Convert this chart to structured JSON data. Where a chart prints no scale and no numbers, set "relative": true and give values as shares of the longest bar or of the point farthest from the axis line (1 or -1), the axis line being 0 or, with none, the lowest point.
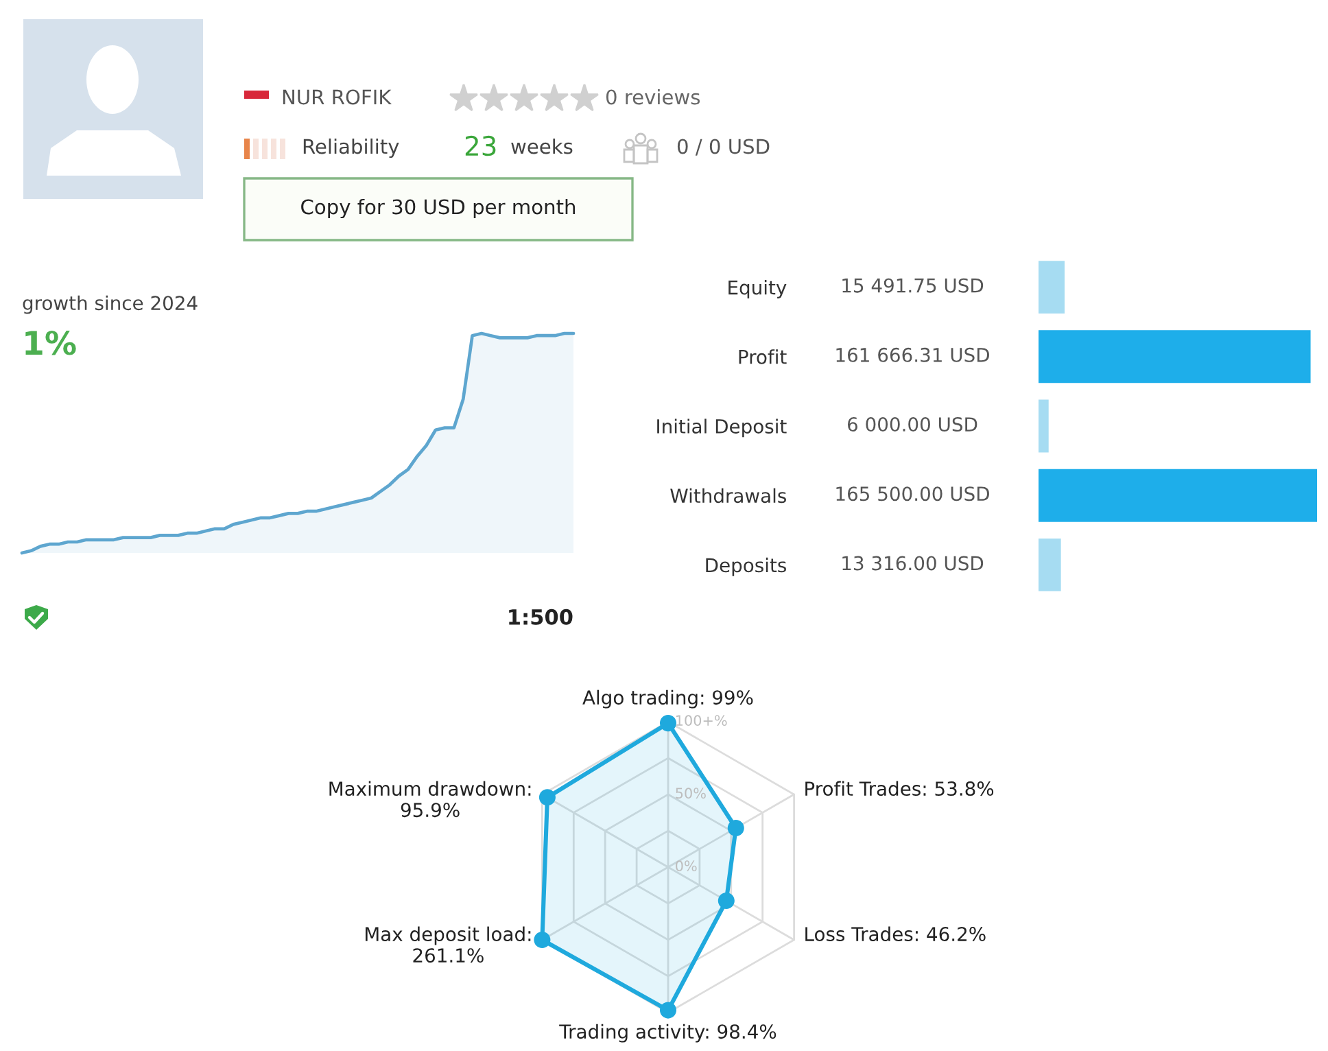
{
  "chart_data": [
    {
      "type": "other",
      "annotations": [
        "NUR ROFIK",
        "0 reviews",
        "Reliability",
        "23",
        "weeks",
        "0 / 0 USD",
        "Copy for 30 USD per month"
      ]
    },
    {
      "type": "area",
      "title": "growth since 2024",
      "subtitle": "1%",
      "relative": true,
      "categories": [
        null,
        null,
        null,
        null,
        null,
        null,
        null,
        null,
        null,
        null,
        null,
        null,
        null,
        null,
        null,
        null,
        null,
        null,
        null,
        null,
        null,
        null,
        null,
        null,
        null,
        null,
        null,
        null,
        null,
        null,
        null,
        null,
        null,
        null,
        null,
        null,
        null,
        null,
        null,
        null,
        null,
        null,
        null,
        null,
        null,
        null,
        null,
        null,
        null,
        null,
        null,
        null,
        null,
        null,
        null,
        null,
        null,
        null,
        null,
        null,
        null
      ],
      "series": [
        {
          "color": "#5ea6cf",
          "values": [
            0,
            0.01,
            0.03,
            0.04,
            0.04,
            0.05,
            0.05,
            0.06,
            0.06,
            0.06,
            0.06,
            0.07,
            0.07,
            0.07,
            0.07,
            0.08,
            0.08,
            0.08,
            0.09,
            0.09,
            0.1,
            0.11,
            0.11,
            0.13,
            0.14,
            0.15,
            0.16,
            0.16,
            0.17,
            0.18,
            0.18,
            0.19,
            0.19,
            0.2,
            0.21,
            0.22,
            0.23,
            0.24,
            0.25,
            0.28,
            0.31,
            0.35,
            0.38,
            0.44,
            0.49,
            0.56,
            0.57,
            0.57,
            0.7,
            0.99,
            1,
            0.99,
            0.98,
            0.98,
            0.98,
            0.98,
            0.99,
            0.99,
            0.99,
            1,
            1
          ]
        }
      ],
      "annotations": [
        "1:500"
      ]
    },
    {
      "type": "bar",
      "orientation": "horizontal",
      "categories": [
        "Equity",
        "Profit",
        "Initial Deposit",
        "Withdrawals",
        "Deposits"
      ],
      "values": [
        15491.75,
        161666.31,
        6000,
        165500,
        13316
      ],
      "value_labels": [
        "15 491.75 USD",
        "161 666.31 USD",
        "6 000.00 USD",
        "165 500.00 USD",
        "13 316.00 USD"
      ],
      "colors": [
        "#a6dcf2",
        "#1eaeea",
        "#a6dcf2",
        "#1eaeea",
        "#a6dcf2"
      ]
    },
    {
      "type": "radar",
      "categories": [
        "Algo trading: 99%",
        "Profit Trades: 53.8%",
        "Loss Trades: 46.2%",
        "Trading activity: 98.4%",
        "Max deposit load:\n261.1%",
        "Maximum drawdown:\n95.9%"
      ],
      "series": [
        {
          "color": "#1fa9dd",
          "values": [
            99,
            53.8,
            46.2,
            98.4,
            100,
            95.9
          ]
        }
      ],
      "ylim": [
        0,
        100
      ],
      "yticks": [
        {
          "value": 0,
          "label": "0%"
        },
        {
          "value": 50,
          "label": "50%"
        },
        {
          "value": 100,
          "label": "100+%"
        }
      ],
      "grid": true,
      "marker": "circle"
    }
  ]
}
